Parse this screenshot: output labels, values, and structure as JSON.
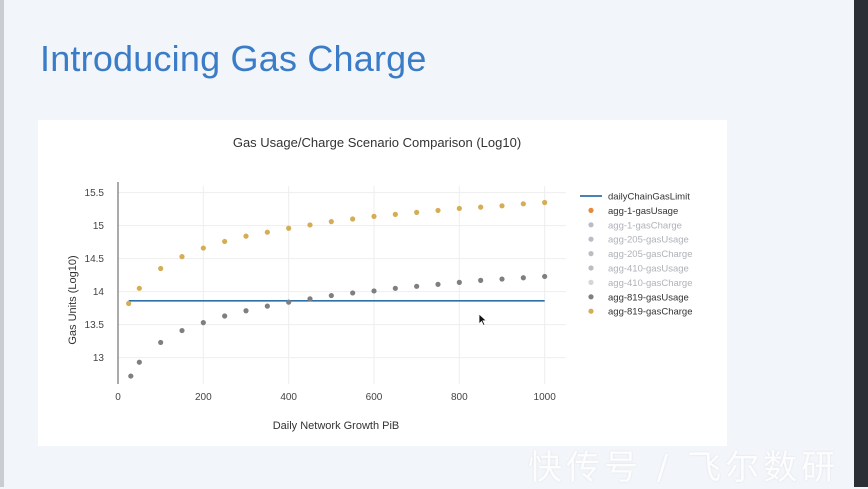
{
  "slide": {
    "title": "Introducing Gas Charge",
    "watermark": "快传号 / 飞尔数研"
  },
  "chart_data": {
    "type": "scatter",
    "title": "Gas Usage/Charge Scenario Comparison (Log10)",
    "xlabel": "Daily Network Growth PiB",
    "ylabel": "Gas Units (Log10)",
    "xlim": [
      0,
      1050
    ],
    "ylim": [
      12.6,
      15.6
    ],
    "xticks": [
      0,
      200,
      400,
      600,
      800,
      1000
    ],
    "yticks": [
      13,
      13.5,
      14,
      14.5,
      15,
      15.5
    ],
    "xtick_labels": [
      "0",
      "200",
      "400",
      "600",
      "800",
      "1000"
    ],
    "ytick_labels": [
      "13",
      "13.5",
      "14",
      "14.5",
      "15",
      "15.5"
    ],
    "grid": true,
    "legend_position": "right",
    "series": [
      {
        "name": "dailyChainGasLimit",
        "kind": "line",
        "color": "#2f6fa8",
        "x": [
          25,
          1000
        ],
        "y": [
          13.86,
          13.86
        ]
      },
      {
        "name": "agg-1-gasUsage",
        "kind": "scatter",
        "color": "#e8893a",
        "x": [],
        "y": []
      },
      {
        "name": "agg-1-gasCharge",
        "kind": "scatter",
        "color": "#b9bdc4",
        "x": [],
        "y": []
      },
      {
        "name": "agg-205-gasUsage",
        "kind": "scatter",
        "color": "#b9bdc4",
        "x": [],
        "y": []
      },
      {
        "name": "agg-205-gasCharge",
        "kind": "scatter",
        "color": "#b9bdc4",
        "x": [],
        "y": []
      },
      {
        "name": "agg-410-gasUsage",
        "kind": "scatter",
        "color": "#b9bdc4",
        "x": [],
        "y": []
      },
      {
        "name": "agg-410-gasCharge",
        "kind": "scatter",
        "color": "#d3d6da",
        "x": [],
        "y": []
      },
      {
        "name": "agg-819-gasUsage",
        "kind": "scatter",
        "color": "#7d7f83",
        "x": [
          30,
          50,
          100,
          150,
          200,
          250,
          300,
          350,
          400,
          450,
          500,
          550,
          600,
          650,
          700,
          750,
          800,
          850,
          900,
          950,
          1000
        ],
        "y": [
          12.72,
          12.93,
          13.23,
          13.41,
          13.53,
          13.63,
          13.71,
          13.78,
          13.84,
          13.89,
          13.94,
          13.98,
          14.01,
          14.05,
          14.08,
          14.11,
          14.14,
          14.17,
          14.19,
          14.21,
          14.23
        ]
      },
      {
        "name": "agg-819-gasCharge",
        "kind": "scatter",
        "color": "#d4ad54",
        "x": [
          25,
          50,
          100,
          150,
          200,
          250,
          300,
          350,
          400,
          450,
          500,
          550,
          600,
          650,
          700,
          750,
          800,
          850,
          900,
          950,
          1000
        ],
        "y": [
          13.82,
          14.05,
          14.35,
          14.53,
          14.66,
          14.76,
          14.84,
          14.9,
          14.96,
          15.01,
          15.06,
          15.1,
          15.14,
          15.17,
          15.2,
          15.23,
          15.26,
          15.28,
          15.3,
          15.33,
          15.35
        ]
      }
    ]
  }
}
